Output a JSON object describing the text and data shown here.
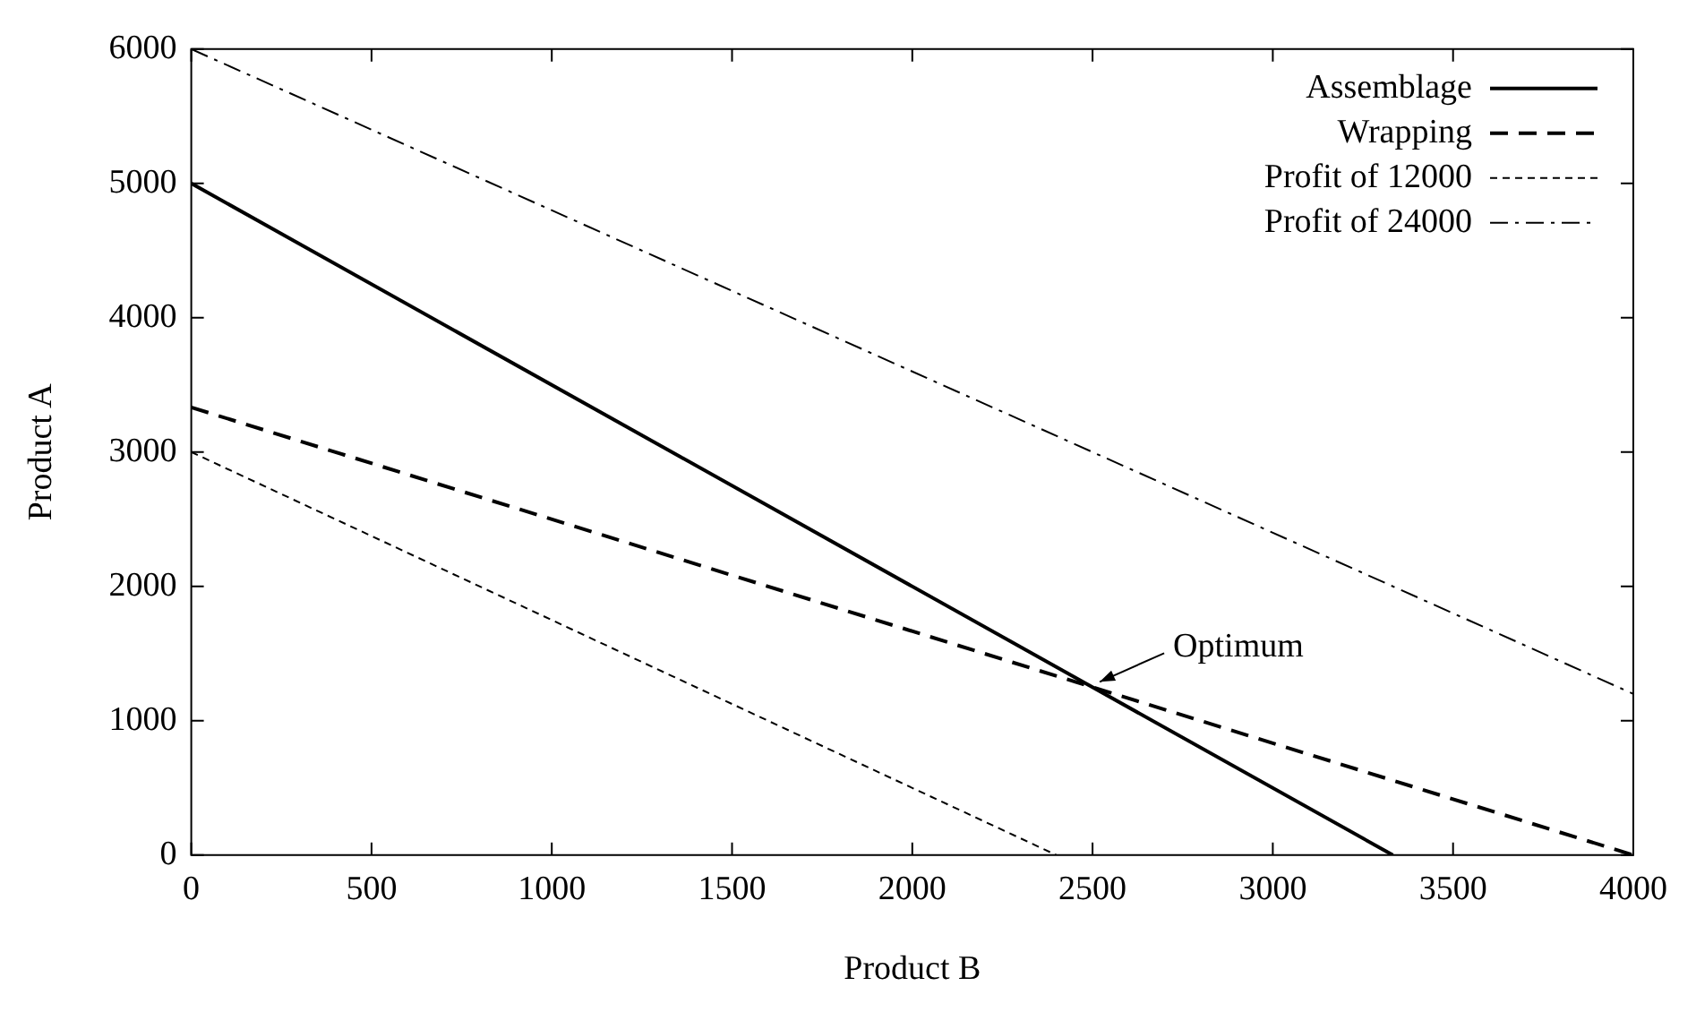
{
  "chart_data": {
    "type": "line",
    "xlabel": "Product B",
    "ylabel": "Product A",
    "xlim": [
      0,
      4000
    ],
    "ylim": [
      0,
      6000
    ],
    "xticks": [
      0,
      500,
      1000,
      1500,
      2000,
      2500,
      3000,
      3500,
      4000
    ],
    "yticks": [
      0,
      1000,
      2000,
      3000,
      4000,
      5000,
      6000
    ],
    "grid": false,
    "legend": "top right",
    "marker": "none",
    "series": [
      {
        "name": "Assemblage",
        "color": "#000000",
        "line_style": "solid",
        "x": [
          0,
          3333
        ],
        "values": [
          5000,
          0
        ]
      },
      {
        "name": "Wrapping",
        "color": "#000000",
        "line_style": "dashed",
        "x": [
          0,
          4000
        ],
        "values": [
          3333,
          0
        ]
      },
      {
        "name": "Profit of 12000",
        "color": "#000000",
        "line_style": "dotted",
        "x": [
          0,
          2400
        ],
        "values": [
          3000,
          0
        ]
      },
      {
        "name": "Profit of 24000",
        "color": "#000000",
        "line_style": "dashdot",
        "x": [
          0,
          4000
        ],
        "values": [
          6000,
          1200
        ]
      }
    ],
    "annotations": [
      {
        "text": "Optimum",
        "x": 2500,
        "y": 1250
      }
    ]
  }
}
